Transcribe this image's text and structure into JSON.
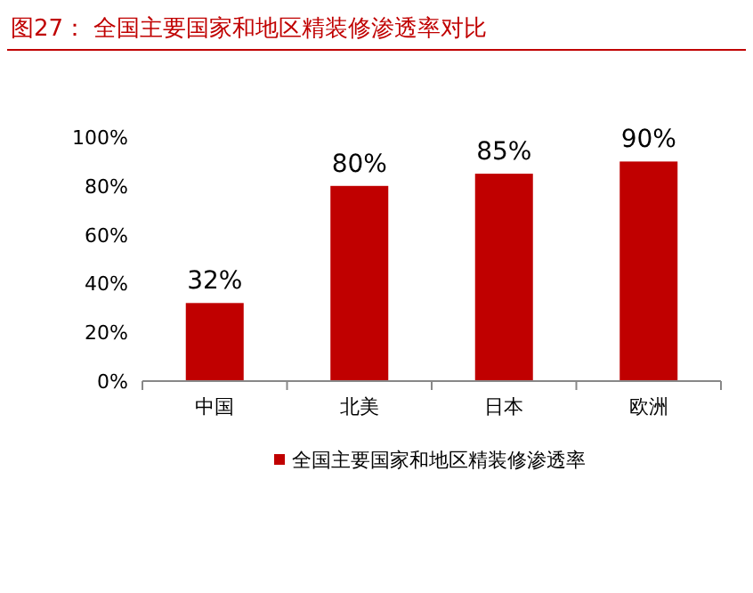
{
  "chart_data": {
    "type": "bar",
    "title": "图27：  全国主要国家和地区精装修渗透率对比",
    "categories": [
      "中国",
      "北美",
      "日本",
      "欧洲"
    ],
    "series": [
      {
        "name": "全国主要国家和地区精装修渗透率",
        "color": "#c00000",
        "values": [
          32,
          80,
          85,
          90
        ],
        "value_labels": [
          "32%",
          "80%",
          "85%",
          "90%"
        ]
      }
    ],
    "ylim": [
      0,
      100
    ],
    "yticks": [
      {
        "value": 0,
        "label": "0%"
      },
      {
        "value": 20,
        "label": "20%"
      },
      {
        "value": 40,
        "label": "40%"
      },
      {
        "value": 60,
        "label": "60%"
      },
      {
        "value": 80,
        "label": "80%"
      },
      {
        "value": 100,
        "label": "100%"
      }
    ],
    "legend": "bottom"
  }
}
